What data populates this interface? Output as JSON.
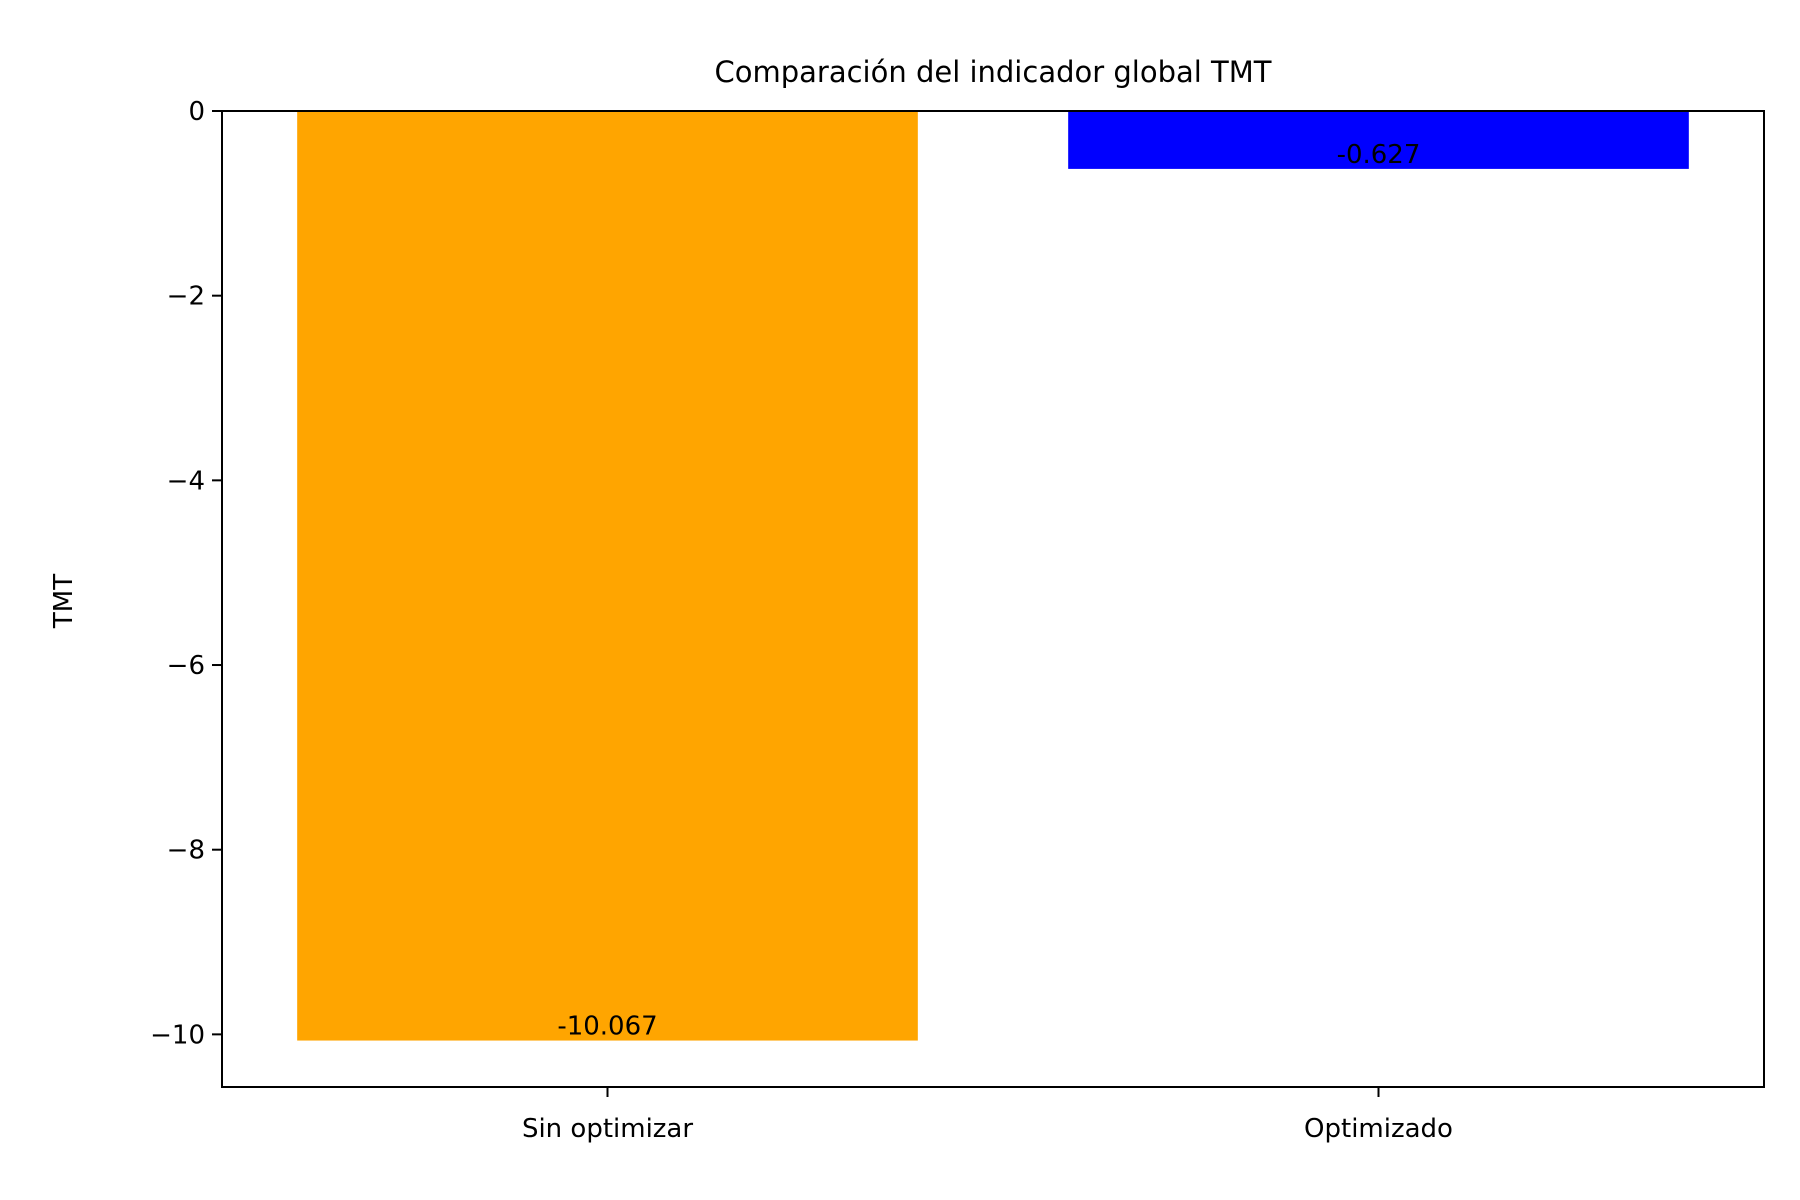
{
  "chart_data": {
    "type": "bar",
    "title": "Comparación del indicador global TMT",
    "xlabel": "",
    "ylabel": "TMT",
    "categories": [
      "Sin optimizar",
      "Optimizado"
    ],
    "values": [
      -10.067,
      -0.627
    ],
    "data_labels": [
      "-10.067",
      "-0.627"
    ],
    "bar_colors": [
      "#FFA500",
      "#0000FF"
    ],
    "ylim": [
      -10.57,
      0
    ],
    "yticks": [
      0,
      -2,
      -4,
      -6,
      -8,
      -10
    ],
    "ytick_labels": [
      "0",
      "−2",
      "−4",
      "−6",
      "−8",
      "−10"
    ],
    "grid": false,
    "legend": "none"
  }
}
